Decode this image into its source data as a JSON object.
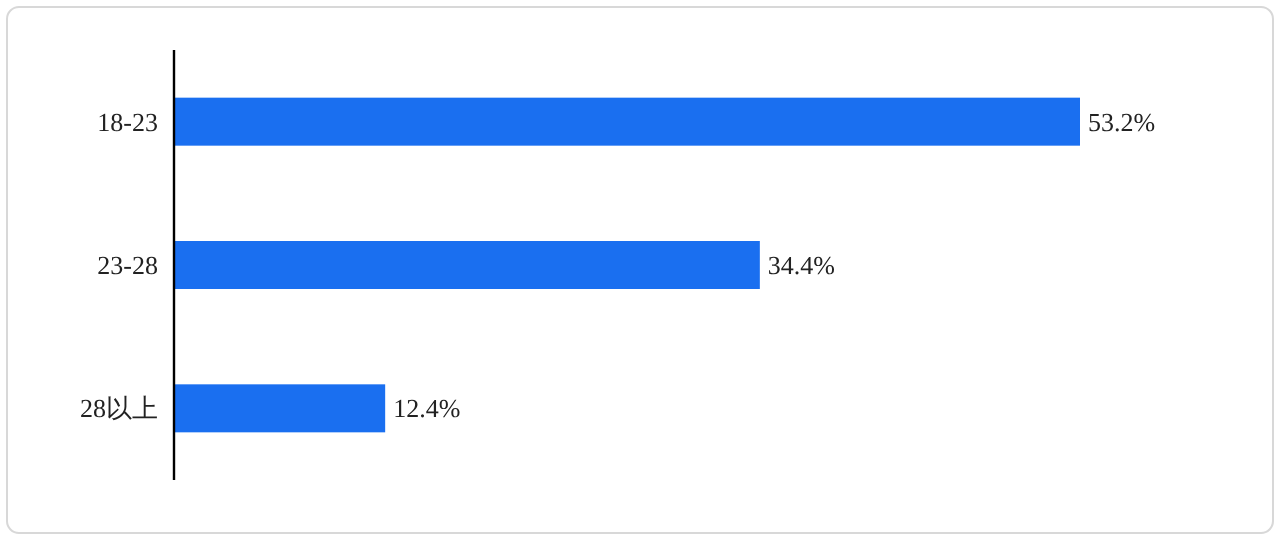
{
  "chart_data": {
    "type": "bar",
    "orientation": "horizontal",
    "categories": [
      "18-23",
      "23-28",
      "28以上"
    ],
    "values": [
      53.2,
      34.4,
      12.4
    ],
    "value_labels": [
      "53.2%",
      "34.4%",
      "12.4%"
    ],
    "color": "#1a6ff0"
  }
}
